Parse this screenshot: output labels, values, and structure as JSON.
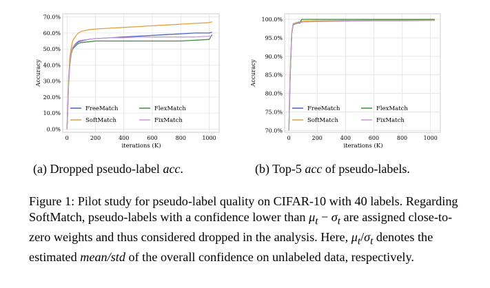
{
  "chart_data": [
    {
      "type": "line",
      "title": "",
      "xlabel": "iterations (K)",
      "ylabel": "Accuracy",
      "xlim": [
        -30,
        1070
      ],
      "ylim": [
        -2,
        72
      ],
      "xticks": [
        0,
        200,
        400,
        600,
        800,
        1000
      ],
      "yticks": [
        0,
        10,
        20,
        30,
        40,
        50,
        60,
        70
      ],
      "ytick_labels": [
        "0.0%",
        "10.0%",
        "20.0%",
        "30.0%",
        "40.0%",
        "50.0%",
        "60.0%",
        "70.0%"
      ],
      "grid": true,
      "legend_position": "lower-right",
      "series": [
        {
          "name": "FreeMatch",
          "color": "#4c5fc7",
          "x": [
            0,
            5,
            10,
            20,
            30,
            40,
            60,
            80,
            100,
            150,
            200,
            300,
            400,
            500,
            600,
            700,
            800,
            900,
            1000,
            1020
          ],
          "y": [
            0,
            12,
            28,
            42,
            48,
            51,
            53,
            54.5,
            55,
            56,
            56.5,
            57,
            57.5,
            58,
            58.5,
            59,
            59.5,
            60,
            60,
            60.5
          ]
        },
        {
          "name": "SoftMatch",
          "color": "#e2a03a",
          "x": [
            0,
            5,
            10,
            20,
            30,
            40,
            60,
            80,
            100,
            150,
            200,
            300,
            400,
            500,
            600,
            700,
            800,
            900,
            1000,
            1020
          ],
          "y": [
            0,
            14,
            30,
            45,
            51,
            55,
            58,
            60,
            61,
            62,
            62.5,
            63,
            63.5,
            64,
            64.5,
            65,
            65.5,
            66,
            66.5,
            67
          ]
        },
        {
          "name": "FlexMatch",
          "color": "#3c8a3c",
          "x": [
            0,
            5,
            10,
            20,
            30,
            40,
            60,
            80,
            100,
            150,
            200,
            300,
            400,
            500,
            600,
            700,
            800,
            900,
            1000,
            1020
          ],
          "y": [
            0,
            10,
            26,
            40,
            47,
            50,
            52,
            53.5,
            54,
            54.5,
            55,
            55,
            55,
            55,
            55,
            55,
            55,
            55.5,
            56,
            59
          ]
        },
        {
          "name": "FixMatch",
          "color": "#c99ad3",
          "x": [
            0,
            5,
            10,
            20,
            30,
            40,
            60,
            80,
            100,
            150,
            200,
            300,
            400,
            500,
            600,
            700,
            800,
            900,
            1000,
            1020
          ],
          "y": [
            0,
            11,
            27,
            41,
            48,
            51,
            53.5,
            55,
            55.5,
            56,
            56.5,
            57,
            57,
            57.5,
            57.5,
            57.5,
            57.5,
            57.5,
            58,
            58
          ]
        }
      ]
    },
    {
      "type": "line",
      "title": "",
      "xlabel": "iterations (K)",
      "ylabel": "Accuracy",
      "xlim": [
        -30,
        1070
      ],
      "ylim": [
        69.5,
        101.5
      ],
      "xticks": [
        0,
        200,
        400,
        600,
        800,
        1000
      ],
      "yticks": [
        70,
        75,
        80,
        85,
        90,
        95,
        100
      ],
      "ytick_labels": [
        "70.0%",
        "75.0%",
        "80.0%",
        "85.0%",
        "90.0%",
        "95.0%",
        "100.0%"
      ],
      "grid": true,
      "legend_position": "lower-right",
      "series": [
        {
          "name": "FreeMatch",
          "color": "#4c5fc7",
          "x": [
            0,
            10,
            20,
            30,
            50,
            80,
            100,
            200,
            400,
            600,
            800,
            1000,
            1030
          ],
          "y": [
            70,
            86,
            96,
            98.6,
            99,
            99.2,
            99.3,
            99.5,
            99.6,
            99.7,
            99.7,
            99.8,
            99.8
          ]
        },
        {
          "name": "SoftMatch",
          "color": "#e2a03a",
          "x": [
            0,
            10,
            20,
            30,
            50,
            80,
            100,
            200,
            400,
            600,
            800,
            1000,
            1030
          ],
          "y": [
            70,
            87,
            96.5,
            98.8,
            99.1,
            99.4,
            99.5,
            99.6,
            99.7,
            99.8,
            99.8,
            99.8,
            99.8
          ]
        },
        {
          "name": "FlexMatch",
          "color": "#3c8a3c",
          "x": [
            0,
            10,
            20,
            30,
            50,
            80,
            90,
            100,
            200,
            400,
            600,
            800,
            1000,
            1030
          ],
          "y": [
            70,
            85,
            96,
            98.5,
            98.9,
            99,
            100,
            100,
            100,
            100,
            100,
            100,
            100,
            100
          ]
        },
        {
          "name": "FixMatch",
          "color": "#c99ad3",
          "x": [
            0,
            10,
            20,
            30,
            50,
            80,
            100,
            200,
            400,
            600,
            800,
            1000,
            1030
          ],
          "y": [
            70,
            86,
            96,
            98.7,
            99,
            99.2,
            99.3,
            99.4,
            99.5,
            99.6,
            99.6,
            99.7,
            99.7
          ]
        }
      ]
    }
  ],
  "subcaptions": {
    "a": {
      "prefix": "(a)  Dropped pseudo-label ",
      "italic": "acc",
      "suffix": "."
    },
    "b": {
      "prefix": "(b)  Top-5 ",
      "italic": "acc",
      "suffix": " of pseudo-labels."
    }
  },
  "caption": {
    "part1": "Figure 1: Pilot study for pseudo-label quality on CIFAR-10 with 40 labels. Regarding SoftMatch, pseudo-labels with a confidence lower than ",
    "mu_t": "μ",
    "t_sub": "t",
    "minus": " − ",
    "sigma_t": "σ",
    "part2": " are assigned close-to-zero weights and thus considered dropped in the analysis. Here, ",
    "slash": "/",
    "part3": " denotes the estimated ",
    "mean_std": "mean/std",
    "part4": " of the overall confidence on unlabeled data, respectively."
  }
}
